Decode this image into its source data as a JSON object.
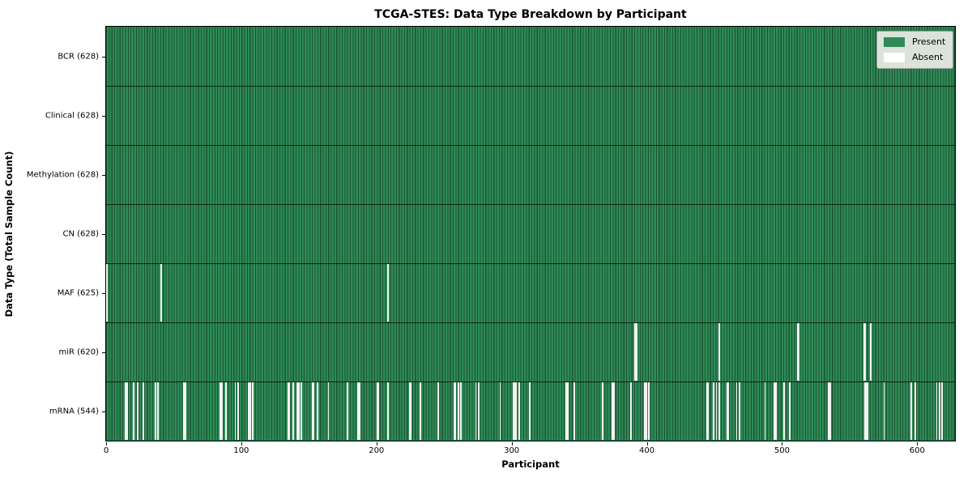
{
  "title": "TCGA-STES: Data Type Breakdown by Participant",
  "chart_data": {
    "type": "heatmap",
    "title": "TCGA-STES: Data Type Breakdown by Participant",
    "xlabel": "Participant",
    "ylabel": "Data Type (Total Sample Count)",
    "xlim": [
      0,
      628
    ],
    "x_ticks": [
      0,
      100,
      200,
      300,
      400,
      500,
      600
    ],
    "grid": false,
    "colors": {
      "present": "#2e8b57",
      "present_edge": "#1c5434",
      "absent": "#ffffff"
    },
    "legend": {
      "position": "upper right",
      "entries": [
        {
          "label": "Present",
          "color": "#2e8b57"
        },
        {
          "label": "Absent",
          "color": "#ffffff"
        }
      ]
    },
    "rows": [
      {
        "label": "BCR",
        "total_samples": 628,
        "tick_label": "BCR (628)",
        "absent_participants": []
      },
      {
        "label": "Clinical",
        "total_samples": 628,
        "tick_label": "Clinical (628)",
        "absent_participants": []
      },
      {
        "label": "Methylation",
        "total_samples": 628,
        "tick_label": "Methylation (628)",
        "absent_participants": []
      },
      {
        "label": "CN",
        "total_samples": 628,
        "tick_label": "CN (628)",
        "absent_participants": []
      },
      {
        "label": "MAF",
        "total_samples": 625,
        "tick_label": "MAF (625)",
        "absent_participants": [
          0,
          40,
          208
        ]
      },
      {
        "label": "miR",
        "total_samples": 620,
        "tick_label": "miR (620)",
        "absent_participants": [
          391,
          392,
          453,
          511,
          512,
          560,
          561,
          565
        ]
      },
      {
        "label": "mRNA",
        "total_samples": 544,
        "tick_label": "mRNA (544)",
        "absent_participants": [
          14,
          15,
          20,
          23,
          27,
          36,
          38,
          57,
          58,
          84,
          85,
          88,
          95,
          97,
          105,
          106,
          108,
          134,
          135,
          138,
          141,
          142,
          144,
          152,
          153,
          156,
          164,
          178,
          186,
          187,
          200,
          201,
          208,
          224,
          225,
          232,
          245,
          257,
          258,
          260,
          262,
          273,
          275,
          291,
          301,
          302,
          303,
          305,
          313,
          340,
          341,
          346,
          367,
          374,
          375,
          388,
          398,
          399,
          401,
          444,
          445,
          449,
          451,
          453,
          459,
          460,
          466,
          468,
          487,
          494,
          495,
          501,
          505,
          534,
          535,
          561,
          562,
          563,
          575,
          595,
          598,
          614,
          616,
          618
        ]
      }
    ]
  }
}
